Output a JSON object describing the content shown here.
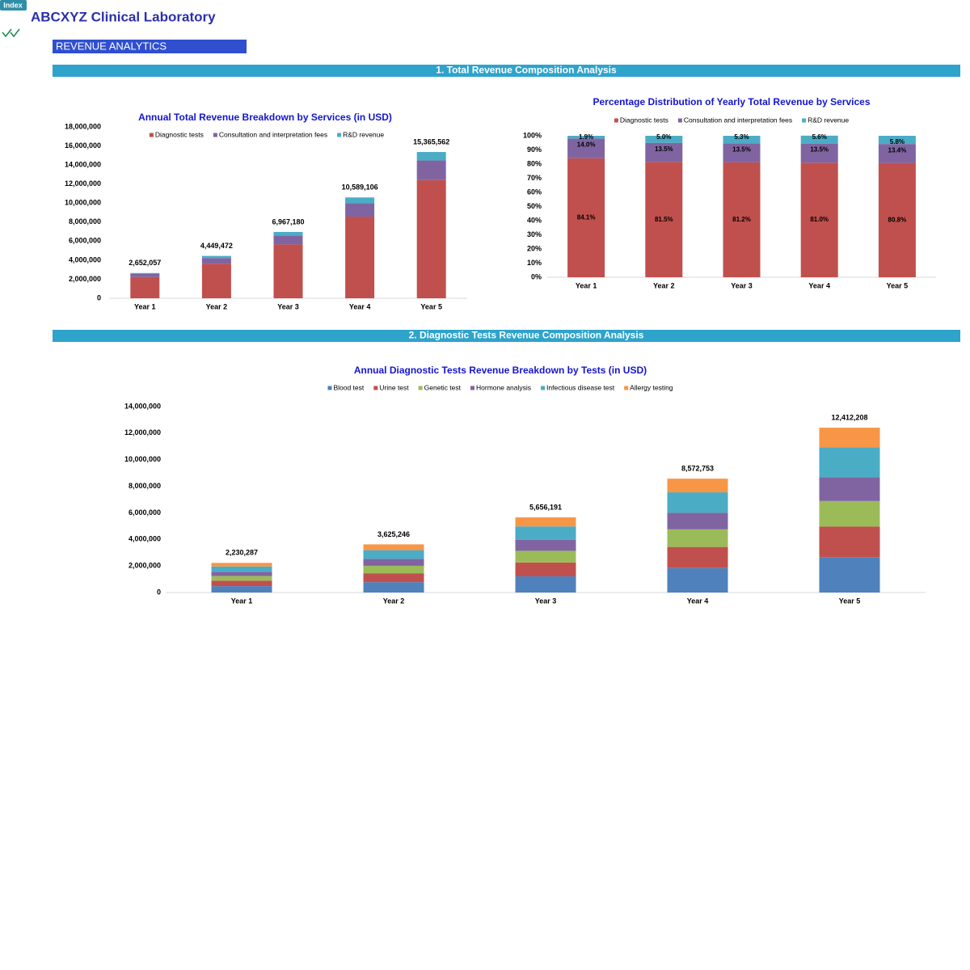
{
  "header": {
    "index_button": "Index",
    "title": "ABCXYZ Clinical Laboratory",
    "page_title": "REVENUE ANALYTICS"
  },
  "sections": [
    "1. Total Revenue Composition Analysis",
    "2. Diagnostic Tests Revenue Composition Analysis"
  ],
  "chart_data": [
    {
      "type": "bar",
      "stacked": true,
      "title": "Annual Total Revenue Breakdown by Services (in USD)",
      "categories": [
        "Year 1",
        "Year 2",
        "Year 3",
        "Year 4",
        "Year 5"
      ],
      "series": [
        {
          "name": "Diagnostic tests",
          "color": "#c0504d",
          "values": [
            2230287,
            3625246,
            5656191,
            8572753,
            12412208
          ]
        },
        {
          "name": "Consultation and interpretation fees",
          "color": "#8064a2",
          "values": [
            371288,
            600679,
            940569,
            1426000,
            2058985
          ]
        },
        {
          "name": "R&D revenue",
          "color": "#4bacc6",
          "values": [
            50482,
            223547,
            370420,
            590353,
            894369
          ]
        }
      ],
      "totals": {
        "values": [
          2652057,
          4449472,
          6967180,
          10589106,
          15365562
        ],
        "value_labels": [
          "2,652,057",
          "4,449,472",
          "6,967,180",
          "10,589,106",
          "15,365,562"
        ]
      },
      "ylim": [
        0,
        18000000
      ],
      "yticks": [
        0,
        {
          "value": 2000000,
          "label": "2,000,000"
        },
        {
          "value": 4000000,
          "label": "4,000,000"
        },
        {
          "value": 6000000,
          "label": "6,000,000"
        },
        {
          "value": 8000000,
          "label": "8,000,000"
        },
        {
          "value": 10000000,
          "label": "10,000,000"
        },
        {
          "value": 12000000,
          "label": "12,000,000"
        },
        {
          "value": 14000000,
          "label": "14,000,000"
        },
        {
          "value": 16000000,
          "label": "16,000,000"
        },
        {
          "value": 18000000,
          "label": "18,000,000"
        }
      ],
      "legend": "top"
    },
    {
      "type": "bar",
      "stacked": true,
      "title": "Percentage Distribution of Yearly Total Revenue by Services",
      "categories": [
        "Year 1",
        "Year 2",
        "Year 3",
        "Year 4",
        "Year 5"
      ],
      "series": [
        {
          "name": "Diagnostic tests",
          "color": "#c0504d",
          "values": [
            84.1,
            81.5,
            81.2,
            81.0,
            80.8
          ],
          "value_labels": [
            "84.1%",
            "81.5%",
            "81.2%",
            "81.0%",
            "80.8%"
          ]
        },
        {
          "name": "Consultation and interpretation fees",
          "color": "#8064a2",
          "values": [
            14.0,
            13.5,
            13.5,
            13.5,
            13.4
          ],
          "value_labels": [
            "14.0%",
            "13.5%",
            "13.5%",
            "13.5%",
            "13.4%"
          ]
        },
        {
          "name": "R&D revenue",
          "color": "#4bacc6",
          "values": [
            1.9,
            5.0,
            5.3,
            5.6,
            5.8
          ],
          "value_labels": [
            "1.9%",
            "5.0%",
            "5.3%",
            "5.6%",
            "5.8%"
          ]
        }
      ],
      "ylim": [
        0,
        100
      ],
      "yticks": [
        {
          "value": 0,
          "label": "0%"
        },
        {
          "value": 10,
          "label": "10%"
        },
        {
          "value": 20,
          "label": "20%"
        },
        {
          "value": 30,
          "label": "30%"
        },
        {
          "value": 40,
          "label": "40%"
        },
        {
          "value": 50,
          "label": "50%"
        },
        {
          "value": 60,
          "label": "60%"
        },
        {
          "value": 70,
          "label": "70%"
        },
        {
          "value": 80,
          "label": "80%"
        },
        {
          "value": 90,
          "label": "90%"
        },
        {
          "value": 100,
          "label": "100%"
        }
      ],
      "legend": "top"
    },
    {
      "type": "bar",
      "stacked": true,
      "title": "Annual Diagnostic Tests Revenue Breakdown by Tests (in USD)",
      "categories": [
        "Year 1",
        "Year 2",
        "Year 3",
        "Year 4",
        "Year 5"
      ],
      "series": [
        {
          "name": "Blood test",
          "color": "#4f81bd",
          "values": [
            479512,
            779428,
            1216081,
            1843142,
            2668625
          ]
        },
        {
          "name": "Urine test",
          "color": "#c0504d",
          "values": [
            412603,
            670671,
            1046395,
            1585959,
            2296258
          ]
        },
        {
          "name": "Genetic test",
          "color": "#9bbb59",
          "values": [
            345694,
            561913,
            876710,
            1328777,
            1923892
          ]
        },
        {
          "name": "Hormone analysis",
          "color": "#8064a2",
          "values": [
            323392,
            525661,
            820148,
            1243049,
            1799770
          ]
        },
        {
          "name": "Infectious disease test",
          "color": "#4bacc6",
          "values": [
            401452,
            652544,
            1018114,
            1543096,
            2234197
          ]
        },
        {
          "name": "Allergy testing",
          "color": "#f79646",
          "values": [
            267634,
            435029,
            678743,
            1028730,
            1489466
          ]
        }
      ],
      "totals": {
        "values": [
          2230287,
          3625246,
          5656191,
          8572753,
          12412208
        ],
        "value_labels": [
          "2,230,287",
          "3,625,246",
          "5,656,191",
          "8,572,753",
          "12,412,208"
        ]
      },
      "ylim": [
        0,
        14000000
      ],
      "yticks": [
        0,
        {
          "value": 2000000,
          "label": "2,000,000"
        },
        {
          "value": 4000000,
          "label": "4,000,000"
        },
        {
          "value": 6000000,
          "label": "6,000,000"
        },
        {
          "value": 8000000,
          "label": "8,000,000"
        },
        {
          "value": 10000000,
          "label": "10,000,000"
        },
        {
          "value": 12000000,
          "label": "12,000,000"
        },
        {
          "value": 14000000,
          "label": "14,000,000"
        }
      ],
      "legend": "top"
    }
  ]
}
